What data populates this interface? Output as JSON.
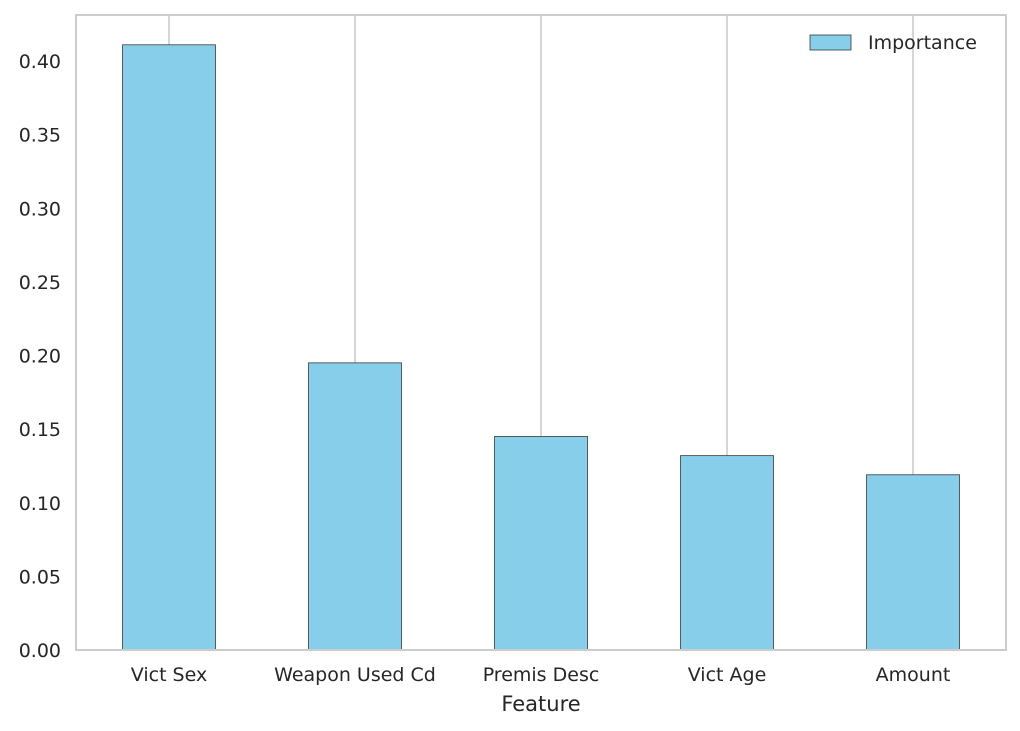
{
  "chart_data": {
    "type": "bar",
    "title": "",
    "xlabel": "Feature",
    "ylabel": "",
    "categories": [
      "Vict Sex",
      "Weapon Used Cd",
      "Premis Desc",
      "Vict Age",
      "Amount"
    ],
    "series": [
      {
        "name": "Importance",
        "values": [
          0.411,
          0.195,
          0.145,
          0.132,
          0.119
        ],
        "color": "#87ceeb"
      }
    ],
    "ylim": [
      0,
      0.43
    ],
    "yticks": [
      0.0,
      0.05,
      0.1,
      0.15,
      0.2,
      0.25,
      0.3,
      0.35,
      0.4
    ],
    "ytick_labels": [
      "0.00",
      "0.05",
      "0.10",
      "0.15",
      "0.20",
      "0.25",
      "0.30",
      "0.35",
      "0.40"
    ],
    "grid": "vertical",
    "legend_position": "top-right",
    "colors": {
      "bar": "#87ceeb",
      "bar_edge": "#3a3a3a",
      "grid": "#cccccc",
      "frame": "#cccccc",
      "text": "#262626"
    }
  }
}
